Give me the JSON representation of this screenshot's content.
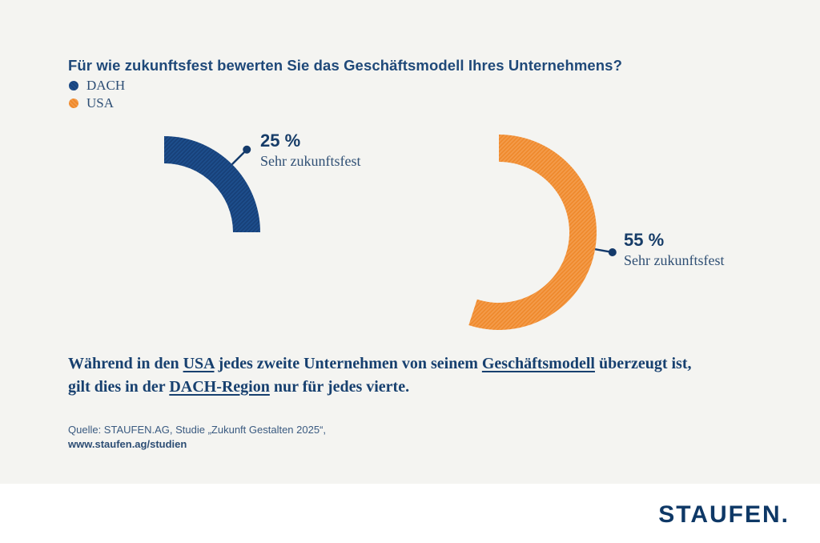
{
  "page": {
    "background_color": "#f4f4f1",
    "footer_background_color": "#ffffff"
  },
  "header": {
    "title": "Für wie zukunftsfest bewerten Sie das Geschäftsmodell Ihres Unternehmens?"
  },
  "legend": {
    "items": [
      {
        "label": "DACH",
        "color": "#1d4e8c"
      },
      {
        "label": "USA",
        "color": "#ef8a2c"
      }
    ]
  },
  "chart_data": {
    "type": "pie",
    "variant": "partial-donut-gauge-pair",
    "title": "Für wie zukunftsfest bewerten Sie das Geschäftsmodell Ihres Unternehmens?",
    "unit": "%",
    "start_angle_deg": 0,
    "direction": "clockwise",
    "legend_position": "top-left",
    "series": [
      {
        "name": "DACH",
        "value": 25,
        "value_label": "25 %",
        "sublabel": "Sehr zukunftsfest",
        "color": "#1d4e8c",
        "stripe_color": "#174078"
      },
      {
        "name": "USA",
        "value": 55,
        "value_label": "55 %",
        "sublabel": "Sehr zukunftsfest",
        "color": "#ef8a2c",
        "stripe_color": "#f39c4c"
      }
    ],
    "leader_dot_color": "#143a6b"
  },
  "statement": {
    "segments": [
      {
        "text": "Während in den "
      },
      {
        "text": "USA",
        "underline": true
      },
      {
        "text": " jedes zweite Unternehmen von seinem "
      },
      {
        "text": "Geschäftsmodell",
        "underline": true
      },
      {
        "text": " überzeugt ist,"
      },
      {
        "br": true
      },
      {
        "text": "gilt dies in der "
      },
      {
        "text": "DACH-Region",
        "underline": true
      },
      {
        "text": " nur für jedes vierte."
      }
    ]
  },
  "source": {
    "line1": "Quelle: STAUFEN.AG, Studie „Zukunft Gestalten 2025“,",
    "line2": "www.staufen.ag/studien"
  },
  "footer": {
    "logo_text": "STAUFEN."
  }
}
